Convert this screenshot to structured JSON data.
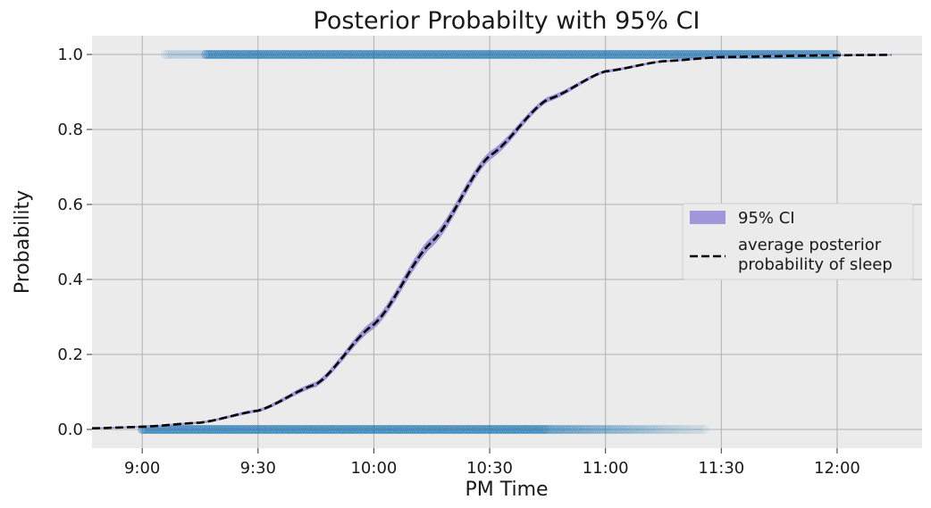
{
  "chart_data": {
    "type": "scatter",
    "title": "Posterior Probabilty with 95% CI",
    "xlabel": "PM Time",
    "ylabel": "Probability",
    "xlim": [
      "8:47",
      "12:22"
    ],
    "ylim": [
      -0.05,
      1.05
    ],
    "x_ticks": [
      "9:00",
      "9:30",
      "10:00",
      "10:30",
      "11:00",
      "11:30",
      "12:00"
    ],
    "y_ticks": [
      "0.0",
      "0.2",
      "0.4",
      "0.6",
      "0.8",
      "1.0"
    ],
    "grid": true,
    "legend": {
      "position": "center-right",
      "entries": [
        {
          "label": "95% CI",
          "kind": "band"
        },
        {
          "label": "average posterior probability of sleep",
          "kind": "dashed-line"
        }
      ]
    },
    "series": [
      {
        "name": "average posterior probability of sleep",
        "style": "dashed",
        "color": "#000000",
        "points": [
          [
            "8:47",
            0.003
          ],
          [
            "9:00",
            0.007
          ],
          [
            "9:15",
            0.018
          ],
          [
            "9:30",
            0.05
          ],
          [
            "9:45",
            0.12
          ],
          [
            "10:00",
            0.28
          ],
          [
            "10:15",
            0.5
          ],
          [
            "10:30",
            0.73
          ],
          [
            "10:45",
            0.88
          ],
          [
            "11:00",
            0.955
          ],
          [
            "11:15",
            0.982
          ],
          [
            "11:30",
            0.993
          ],
          [
            "12:00",
            0.998
          ],
          [
            "12:14",
            0.999
          ]
        ]
      },
      {
        "name": "95% CI",
        "style": "band",
        "color": "#9f97da",
        "note_half_width": 0.012
      },
      {
        "name": "observed awake",
        "style": "points",
        "color": "#1f77b4",
        "y": 0,
        "x_range": [
          "9:00",
          "11:26"
        ],
        "dense_until": "10:45"
      },
      {
        "name": "observed asleep",
        "style": "points",
        "color": "#1f77b4",
        "y": 1,
        "x_range": [
          "9:06",
          "12:00"
        ],
        "dense_from": "9:16"
      }
    ]
  }
}
